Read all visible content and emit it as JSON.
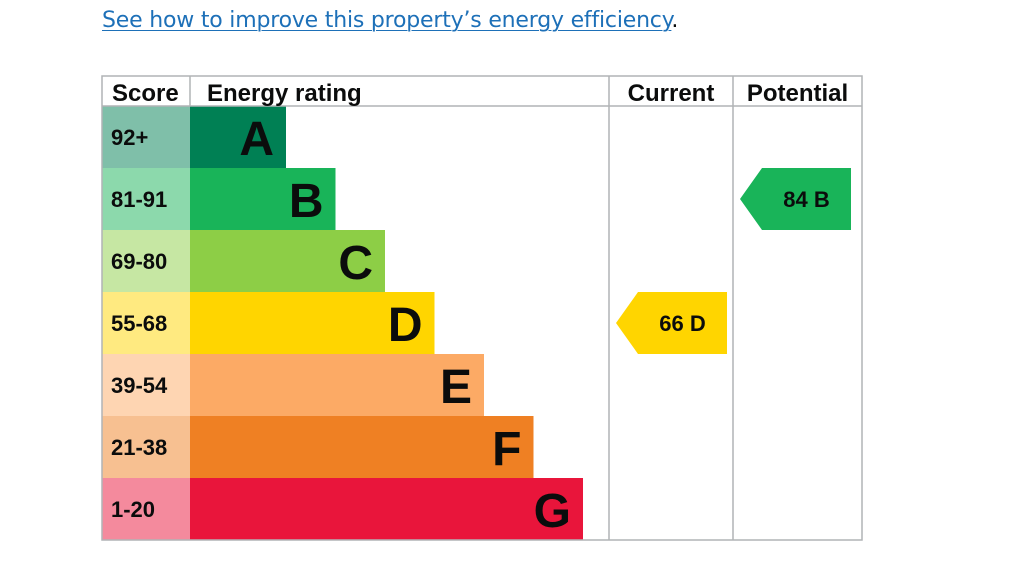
{
  "link": {
    "text": "See how to improve this property’s energy efficiency",
    "suffix": "."
  },
  "chart_data": {
    "type": "bar",
    "headers": {
      "score": "Score",
      "rating": "Energy rating",
      "current": "Current",
      "potential": "Potential"
    },
    "bands": [
      {
        "letter": "A",
        "score": "92+",
        "band_color": "#008054",
        "score_bg": "#7fbfa9"
      },
      {
        "letter": "B",
        "score": "81-91",
        "band_color": "#19b459",
        "score_bg": "#8cd9ac"
      },
      {
        "letter": "C",
        "score": "69-80",
        "band_color": "#8dce46",
        "score_bg": "#c6e7a3"
      },
      {
        "letter": "D",
        "score": "55-68",
        "band_color": "#ffd500",
        "score_bg": "#ffea80"
      },
      {
        "letter": "E",
        "score": "39-54",
        "band_color": "#fcaa65",
        "score_bg": "#fed5b2"
      },
      {
        "letter": "F",
        "score": "21-38",
        "band_color": "#ef8023",
        "score_bg": "#f7c091"
      },
      {
        "letter": "G",
        "score": "1-20",
        "band_color": "#e9153b",
        "score_bg": "#f48a9d"
      }
    ],
    "current": {
      "value": 66,
      "letter": "D",
      "label": "66  D"
    },
    "potential": {
      "value": 84,
      "letter": "B",
      "label": "84  B"
    }
  }
}
